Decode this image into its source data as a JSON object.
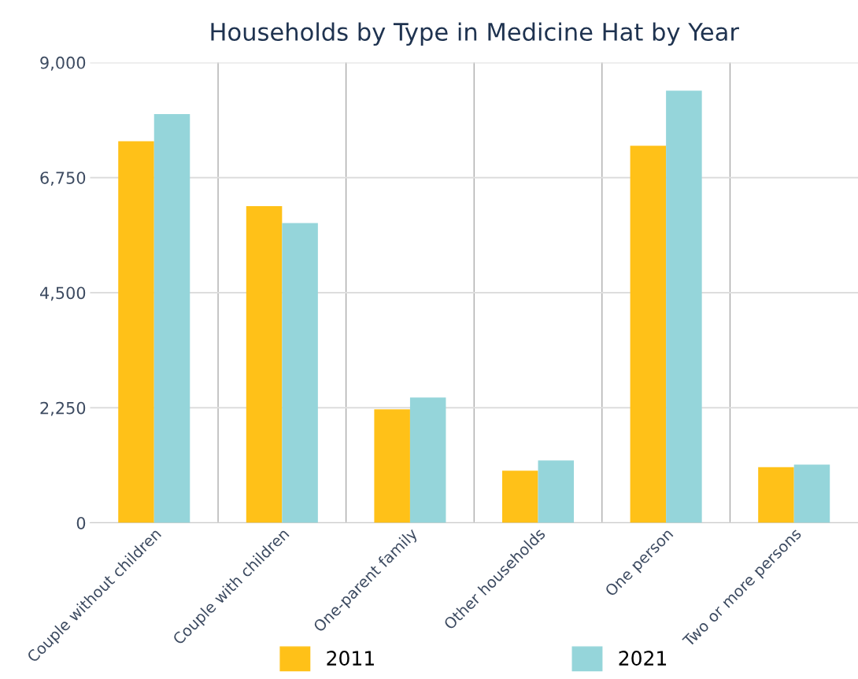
{
  "chart_data": {
    "type": "bar",
    "title": "Households by Type in Medicine Hat by Year",
    "categories": [
      "Couple without children",
      "Couple with children",
      "One-parent family",
      "Other households",
      "One person",
      "Two or more persons"
    ],
    "series": [
      {
        "name": "2011",
        "color": "#ffc118",
        "values": [
          7460,
          6190,
          2220,
          1020,
          7370,
          1090
        ]
      },
      {
        "name": "2021",
        "color": "#95d5da",
        "values": [
          7990,
          5860,
          2450,
          1220,
          8450,
          1140
        ]
      }
    ],
    "ylim": [
      0,
      9000
    ],
    "yticks": [
      0,
      {
        "value": 2250,
        "label": "2,250"
      },
      {
        "value": 4500,
        "label": "4,500"
      },
      {
        "value": 6750,
        "label": "6,750"
      },
      {
        "value": 9000,
        "label": "9,000"
      }
    ],
    "grid": true,
    "legend": "bottom"
  }
}
